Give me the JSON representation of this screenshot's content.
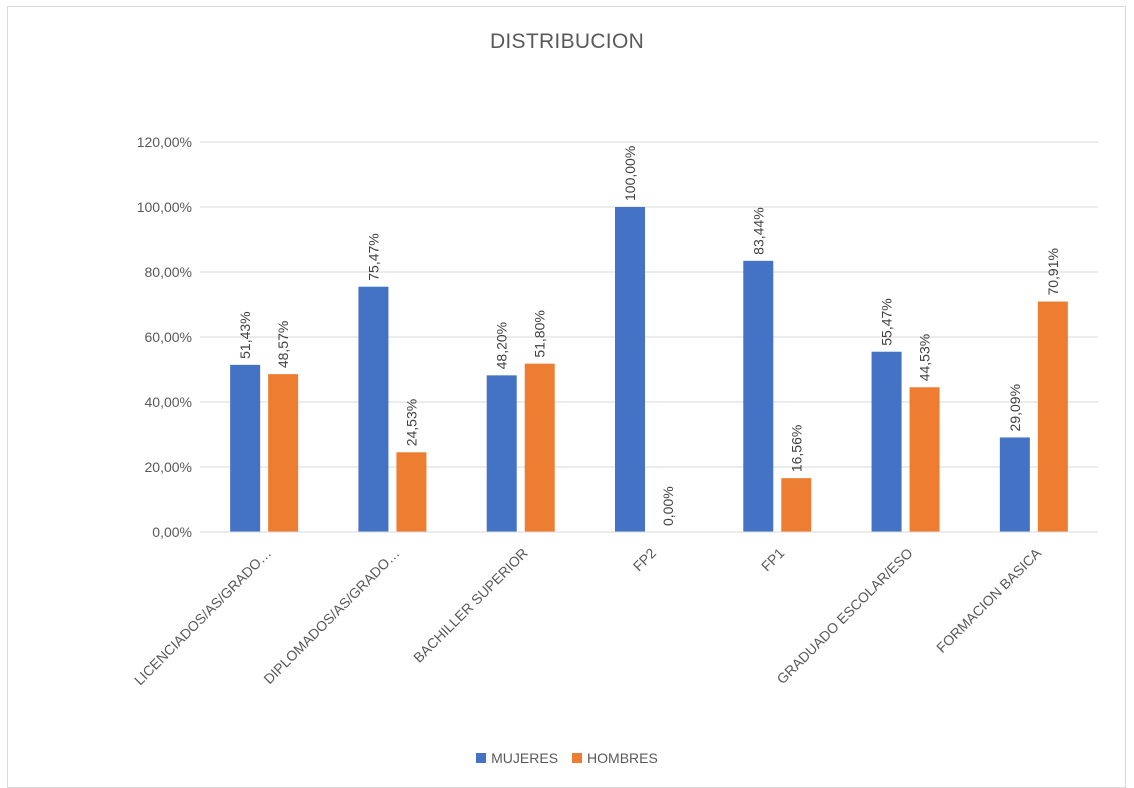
{
  "chart_data": {
    "type": "bar",
    "title": "DISTRIBUCION",
    "categories": [
      "LICENCIADOS/AS/GRADO…",
      "DIPLOMADOS/AS/GRADO…",
      "BACHILLER SUPERIOR",
      "FP2",
      "FP1",
      "GRADUADO ESCOLAR/ESO",
      "FORMACION BASICA"
    ],
    "series": [
      {
        "name": "MUJERES",
        "color": "#4472c4",
        "values": [
          51.43,
          75.47,
          48.2,
          100.0,
          83.44,
          55.47,
          29.09
        ],
        "labels": [
          "51,43%",
          "75,47%",
          "48,20%",
          "100,00%",
          "83,44%",
          "55,47%",
          "29,09%"
        ]
      },
      {
        "name": "HOMBRES",
        "color": "#ed7d31",
        "values": [
          48.57,
          24.53,
          51.8,
          0.0,
          16.56,
          44.53,
          70.91
        ],
        "labels": [
          "48,57%",
          "24,53%",
          "51,80%",
          "0,00%",
          "16,56%",
          "44,53%",
          "70,91%"
        ]
      }
    ],
    "ylim": [
      0,
      120
    ],
    "yticks": [
      0,
      20,
      40,
      60,
      80,
      100,
      120
    ],
    "ytick_labels": [
      "0,00%",
      "20,00%",
      "40,00%",
      "60,00%",
      "80,00%",
      "100,00%",
      "120,00%"
    ],
    "xlabel": "",
    "ylabel": "",
    "grid": true,
    "legend": "bottom"
  }
}
